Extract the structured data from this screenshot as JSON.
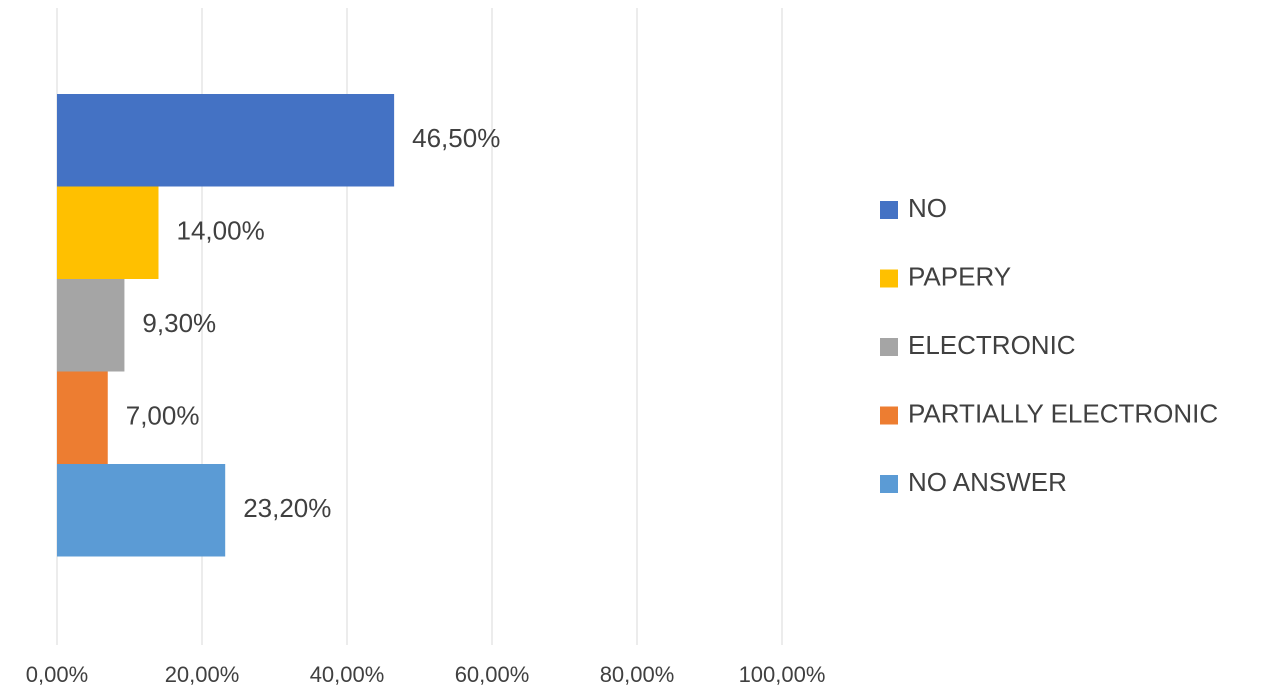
{
  "chart_data": {
    "type": "bar",
    "orientation": "horizontal",
    "title": "",
    "xlabel": "",
    "ylabel": "",
    "xlim": [
      0,
      100
    ],
    "grid": true,
    "legend": "right",
    "x_ticks": [
      "0,00%",
      "20,00%",
      "40,00%",
      "60,00%",
      "80,00%",
      "100,00%"
    ],
    "series": [
      {
        "name": "NO",
        "value": 46.5,
        "label": "46,50%",
        "color": "#4472C4"
      },
      {
        "name": "PAPERY",
        "value": 14.0,
        "label": "14,00%",
        "color": "#FFC000"
      },
      {
        "name": "ELECTRONIC",
        "value": 9.3,
        "label": "9,30%",
        "color": "#A5A5A5"
      },
      {
        "name": "PARTIALLY ELECTRONIC",
        "value": 7.0,
        "label": "7,00%",
        "color": "#ED7D31"
      },
      {
        "name": "NO ANSWER",
        "value": 23.2,
        "label": "23,20%",
        "color": "#5B9BD5"
      }
    ]
  }
}
